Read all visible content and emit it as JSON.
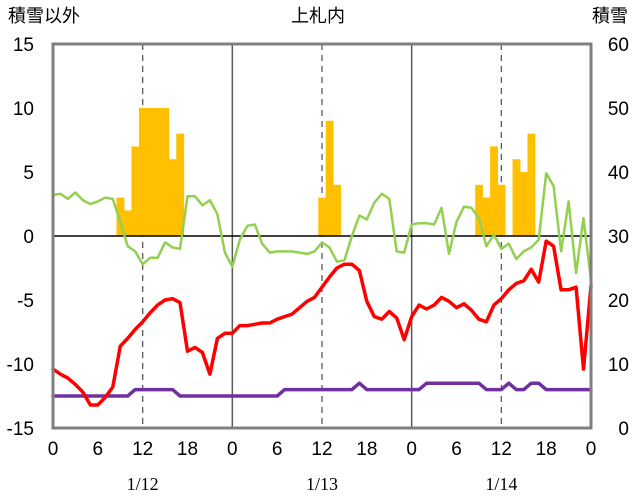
{
  "chart_data": {
    "type": "combo",
    "title": "上札内",
    "left_axis_label": "積雪以外",
    "right_axis_label": "積雪",
    "ylim_left": [
      -15,
      15
    ],
    "yticks_left": [
      15,
      10,
      5,
      0,
      -5,
      -10,
      -15
    ],
    "ylim_right": [
      0,
      60
    ],
    "yticks_right": [
      60,
      50,
      40,
      30,
      20,
      10,
      0
    ],
    "x_tick_labels": [
      "0",
      "6",
      "12",
      "18",
      "0",
      "6",
      "12",
      "18",
      "0",
      "6",
      "12",
      "18",
      "0"
    ],
    "date_labels": [
      "1/12",
      "1/13",
      "1/14"
    ],
    "bar_series": {
      "name": "bars",
      "color": "#FFC000",
      "points": [
        {
          "h": 9,
          "v": 3
        },
        {
          "h": 10,
          "v": 2
        },
        {
          "h": 11,
          "v": 7
        },
        {
          "h": 12,
          "v": 10
        },
        {
          "h": 13,
          "v": 10
        },
        {
          "h": 14,
          "v": 10
        },
        {
          "h": 15,
          "v": 10
        },
        {
          "h": 16,
          "v": 6
        },
        {
          "h": 17,
          "v": 8
        },
        {
          "h": 36,
          "v": 3
        },
        {
          "h": 37,
          "v": 9
        },
        {
          "h": 38,
          "v": 4
        },
        {
          "h": 57,
          "v": 4
        },
        {
          "h": 58,
          "v": 3
        },
        {
          "h": 59,
          "v": 7
        },
        {
          "h": 60,
          "v": 4
        },
        {
          "h": 62,
          "v": 6
        },
        {
          "h": 63,
          "v": 5
        },
        {
          "h": 64,
          "v": 8
        }
      ]
    },
    "line_series": [
      {
        "name": "red",
        "color": "#FF0000",
        "width": 3.5,
        "values": [
          -10.4,
          -10.8,
          -11.1,
          -11.6,
          -12.2,
          -13.2,
          -13.2,
          -12.6,
          -11.8,
          -8.6,
          -8.0,
          -7.3,
          -6.7,
          -6.0,
          -5.4,
          -5.0,
          -4.9,
          -5.2,
          -9.0,
          -8.7,
          -9.1,
          -10.8,
          -8.0,
          -7.6,
          -7.6,
          -7.0,
          -7.0,
          -6.9,
          -6.8,
          -6.8,
          -6.5,
          -6.3,
          -6.1,
          -5.6,
          -5.1,
          -4.8,
          -4.0,
          -3.2,
          -2.5,
          -2.2,
          -2.2,
          -2.7,
          -5.1,
          -6.3,
          -6.5,
          -5.9,
          -6.4,
          -8.1,
          -6.3,
          -5.4,
          -5.7,
          -5.4,
          -4.8,
          -5.1,
          -5.6,
          -5.3,
          -5.8,
          -6.5,
          -6.7,
          -5.4,
          -4.9,
          -4.2,
          -3.7,
          -3.5,
          -2.6,
          -3.6,
          -0.4,
          -0.8,
          -4.2,
          -4.2,
          -4.0,
          -10.4,
          -3.9
        ]
      },
      {
        "name": "green",
        "color": "#92D050",
        "width": 2.5,
        "values": [
          3.2,
          3.3,
          2.9,
          3.4,
          2.8,
          2.5,
          2.7,
          3.0,
          2.9,
          1.1,
          -0.8,
          -1.2,
          -2.2,
          -1.7,
          -1.7,
          -0.5,
          -0.9,
          -1.0,
          3.1,
          3.1,
          2.4,
          2.8,
          1.7,
          -1.3,
          -2.4,
          -0.3,
          0.8,
          0.9,
          -0.6,
          -1.3,
          -1.2,
          -1.2,
          -1.2,
          -1.3,
          -1.4,
          -1.2,
          -0.5,
          -0.9,
          -2.0,
          -1.9,
          0.0,
          1.6,
          1.3,
          2.6,
          3.3,
          2.9,
          -1.2,
          -1.3,
          0.9,
          1.0,
          1.0,
          0.9,
          2.2,
          -1.4,
          1.1,
          2.3,
          2.2,
          1.4,
          -0.8,
          0.1,
          -1.0,
          -0.6,
          -1.8,
          -1.2,
          -0.9,
          -0.3,
          4.9,
          3.9,
          -1.2,
          2.7,
          -2.9,
          1.4,
          -3.5
        ]
      },
      {
        "name": "purple",
        "color": "#7030A0",
        "width": 3.5,
        "values": [
          -12.5,
          -12.5,
          -12.5,
          -12.5,
          -12.5,
          -12.5,
          -12.5,
          -12.5,
          -12.5,
          -12.5,
          -12.5,
          -12.0,
          -12.0,
          -12.0,
          -12.0,
          -12.0,
          -12.0,
          -12.5,
          -12.5,
          -12.5,
          -12.5,
          -12.5,
          -12.5,
          -12.5,
          -12.5,
          -12.5,
          -12.5,
          -12.5,
          -12.5,
          -12.5,
          -12.5,
          -12.0,
          -12.0,
          -12.0,
          -12.0,
          -12.0,
          -12.0,
          -12.0,
          -12.0,
          -12.0,
          -12.0,
          -11.5,
          -12.0,
          -12.0,
          -12.0,
          -12.0,
          -12.0,
          -12.0,
          -12.0,
          -12.0,
          -11.5,
          -11.5,
          -11.5,
          -11.5,
          -11.5,
          -11.5,
          -11.5,
          -11.5,
          -12.0,
          -12.0,
          -12.0,
          -11.5,
          -12.0,
          -12.0,
          -11.5,
          -11.5,
          -12.0,
          -12.0,
          -12.0,
          -12.0,
          -12.0,
          -12.0,
          -12.0
        ]
      }
    ]
  }
}
